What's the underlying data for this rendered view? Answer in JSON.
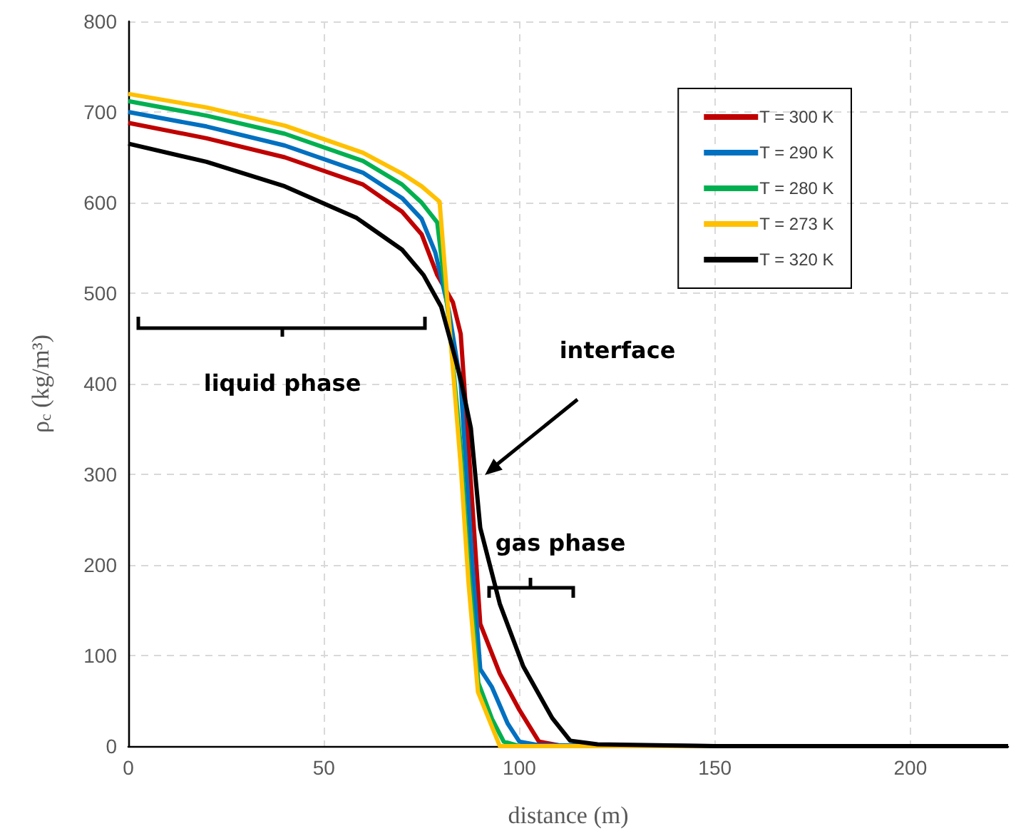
{
  "chart_data": {
    "type": "line",
    "xlabel": "distance (m)",
    "ylabel": "ρ$_{c}$ (kg/m³)",
    "xlim": [
      0,
      225
    ],
    "ylim": [
      0,
      800
    ],
    "xticks": [
      0,
      50,
      100,
      150,
      200
    ],
    "yticks": [
      0,
      100,
      200,
      300,
      400,
      500,
      600,
      700,
      800
    ],
    "grid": true,
    "legend": "top right",
    "marker": "none",
    "line_style": "solid",
    "annotations": [
      "liquid phase",
      "interface",
      "gas phase"
    ],
    "series": [
      {
        "name": "T = 300 K",
        "color": "#c00000",
        "x": [
          0,
          20,
          40,
          60,
          70,
          75,
          79,
          83,
          85,
          87,
          90,
          95,
          100,
          105,
          110,
          150,
          225
        ],
        "values": [
          688,
          671,
          650,
          620,
          590,
          565,
          520,
          490,
          455,
          330,
          135,
          80,
          40,
          5,
          1,
          0,
          0
        ]
      },
      {
        "name": "T = 290 K",
        "color": "#0070c0",
        "x": [
          0,
          20,
          40,
          60,
          70,
          75,
          78.5,
          82,
          85,
          88,
          90,
          93,
          97,
          100,
          105,
          150,
          225
        ],
        "values": [
          700,
          684,
          663,
          633,
          605,
          582,
          545,
          480,
          400,
          200,
          85,
          65,
          25,
          5,
          1,
          0,
          0
        ]
      },
      {
        "name": "T = 280 K",
        "color": "#00b050",
        "x": [
          0,
          20,
          40,
          60,
          70,
          75,
          79,
          82,
          85,
          87,
          89.5,
          93,
          96,
          100,
          150,
          225
        ],
        "values": [
          712,
          696,
          676,
          646,
          620,
          600,
          578,
          470,
          330,
          200,
          70,
          30,
          5,
          0,
          0,
          0
        ]
      },
      {
        "name": "T = 273 K",
        "color": "#ffc000",
        "x": [
          0,
          20,
          40,
          60,
          70,
          75,
          79.6,
          82,
          85,
          87,
          89.4,
          95,
          100,
          150,
          225
        ],
        "values": [
          720,
          705,
          685,
          655,
          632,
          618,
          601,
          470,
          310,
          180,
          60,
          0,
          0,
          0,
          0
        ]
      },
      {
        "name": "T = 320 K",
        "color": "#000000",
        "x": [
          0,
          20,
          40,
          58.4,
          70,
          75.5,
          80,
          82.8,
          85,
          87.6,
          90,
          95,
          101,
          108.4,
          113,
          120,
          150,
          225
        ],
        "values": [
          665,
          645,
          618,
          583,
          548,
          520,
          485,
          441,
          405,
          351,
          241,
          157,
          88,
          31,
          6,
          2,
          0,
          0
        ]
      }
    ]
  }
}
